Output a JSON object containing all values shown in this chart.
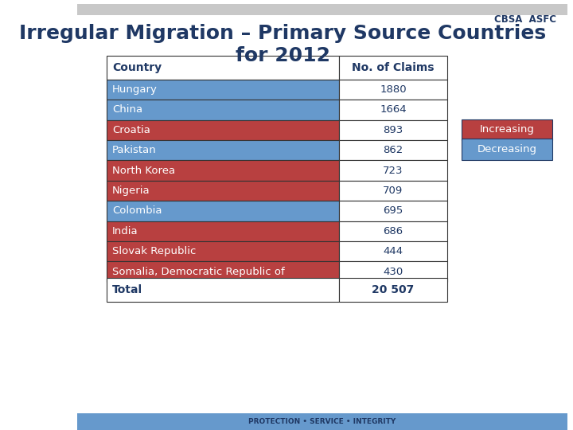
{
  "title": "Irregular Migration – Primary Source Countries\nfor 2012",
  "title_fontsize": 18,
  "title_color": "#1F3864",
  "background_color": "#FFFFFF",
  "header_row": [
    "Country",
    "No. of Claims"
  ],
  "rows": [
    {
      "country": "Hungary",
      "claims": "1880",
      "color": "blue"
    },
    {
      "country": "China",
      "claims": "1664",
      "color": "blue"
    },
    {
      "country": "Croatia",
      "claims": "893",
      "color": "red"
    },
    {
      "country": "Pakistan",
      "claims": "862",
      "color": "blue"
    },
    {
      "country": "North Korea",
      "claims": "723",
      "color": "red"
    },
    {
      "country": "Nigeria",
      "claims": "709",
      "color": "red"
    },
    {
      "country": "Colombia",
      "claims": "695",
      "color": "blue"
    },
    {
      "country": "India",
      "claims": "686",
      "color": "red"
    },
    {
      "country": "Slovak Republic",
      "claims": "444",
      "color": "red"
    },
    {
      "country": "Somalia, Democratic Republic of",
      "claims": "430",
      "color": "red"
    }
  ],
  "total_row": {
    "country": "Total",
    "claims": "20 507"
  },
  "blue_color": "#6699CC",
  "red_color": "#B84040",
  "header_text_color": "#1F3864",
  "legend_increasing": "Increasing",
  "legend_decreasing": "Decreasing",
  "footer_text": "PROTECTION • SERVICE • INTEGRITY",
  "top_bar_color": "#C8C8C8",
  "bottom_bar_color": "#6699CC"
}
